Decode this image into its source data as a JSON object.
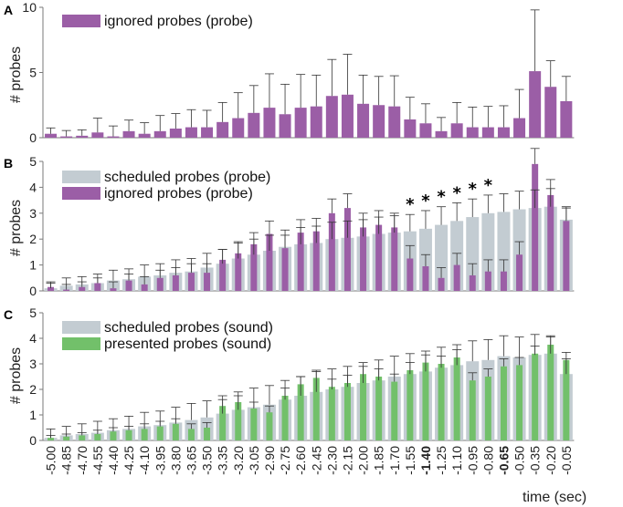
{
  "colors": {
    "ignored": "#9b5ea6",
    "scheduled": "#c3ccd2",
    "presented": "#72c06a",
    "axis": "#7a7a7a",
    "error": "#333333"
  },
  "x_axis_label": "time (sec)",
  "chart_data": [
    {
      "type": "bar",
      "panel": "A",
      "ylabel": "# probes",
      "ylim": [
        0,
        10
      ],
      "yticks": [
        0,
        5,
        10
      ],
      "legend": [
        "ignored probes (probe)"
      ],
      "series": [
        {
          "name": "ignored probes (probe)",
          "values": [
            0.3,
            0.1,
            0.15,
            0.4,
            0.1,
            0.5,
            0.3,
            0.5,
            0.7,
            0.8,
            0.8,
            1.2,
            1.5,
            1.9,
            2.3,
            1.8,
            2.3,
            2.4,
            3.2,
            3.3,
            2.6,
            2.5,
            2.4,
            1.4,
            1.1,
            0.5,
            1.1,
            0.8,
            0.8,
            0.8,
            1.5,
            5.1,
            3.9,
            2.8
          ],
          "errors": [
            0.45,
            0.45,
            0.45,
            1.1,
            0.8,
            0.85,
            0.85,
            1.2,
            1.15,
            1.35,
            1.3,
            1.5,
            1.95,
            2.1,
            2.6,
            2.3,
            2.55,
            2.4,
            2.8,
            3.1,
            2.2,
            2.2,
            2.35,
            1.7,
            1.5,
            1.05,
            1.6,
            1.55,
            1.6,
            1.65,
            2.2,
            4.7,
            2.0,
            1.9
          ]
        }
      ]
    },
    {
      "type": "bar",
      "panel": "B",
      "ylabel": "# probes",
      "ylim": [
        0,
        5
      ],
      "yticks": [
        0,
        1,
        2,
        3,
        4,
        5
      ],
      "legend": [
        "scheduled probes (probe)",
        "ignored probes (probe)"
      ],
      "annotations": [
        "*",
        "*",
        "*",
        "*",
        "*",
        "*"
      ],
      "annotation_indices": [
        23,
        24,
        25,
        26,
        27,
        28
      ],
      "series": [
        {
          "name": "scheduled probes (probe)",
          "values": [
            0.1,
            0.2,
            0.25,
            0.3,
            0.4,
            0.45,
            0.55,
            0.6,
            0.7,
            0.75,
            0.9,
            1.05,
            1.25,
            1.4,
            1.55,
            1.7,
            1.8,
            1.85,
            2.0,
            2.05,
            2.1,
            2.2,
            2.25,
            2.3,
            2.4,
            2.55,
            2.7,
            2.85,
            3.0,
            3.05,
            3.15,
            3.2,
            3.25,
            2.75
          ],
          "errors": [
            0.25,
            0.3,
            0.3,
            0.35,
            0.4,
            0.4,
            0.45,
            0.45,
            0.5,
            0.5,
            0.55,
            0.55,
            0.6,
            0.6,
            0.6,
            0.65,
            0.65,
            0.65,
            0.65,
            0.65,
            0.65,
            0.65,
            0.65,
            0.65,
            0.7,
            0.7,
            0.7,
            0.7,
            0.7,
            0.7,
            0.7,
            0.7,
            0.7,
            0.5
          ]
        },
        {
          "name": "ignored probes (probe)",
          "values": [
            0.15,
            0.05,
            0.15,
            0.3,
            0.1,
            0.4,
            0.25,
            0.5,
            0.6,
            0.7,
            0.7,
            1.2,
            1.45,
            1.8,
            2.2,
            1.65,
            2.25,
            2.3,
            3.0,
            3.2,
            2.45,
            2.55,
            2.45,
            1.25,
            0.95,
            0.5,
            1.0,
            0.6,
            0.75,
            0.75,
            1.4,
            4.9,
            3.7,
            2.7
          ],
          "errors": [
            0.15,
            0.2,
            0.2,
            0.2,
            0.25,
            0.25,
            0.3,
            0.3,
            0.3,
            0.35,
            0.35,
            0.4,
            0.45,
            0.45,
            0.5,
            0.5,
            0.5,
            0.5,
            0.55,
            0.55,
            0.55,
            0.55,
            0.55,
            0.5,
            0.45,
            0.4,
            0.45,
            0.45,
            0.45,
            0.45,
            0.5,
            0.6,
            0.6,
            0.5
          ]
        }
      ]
    },
    {
      "type": "bar",
      "panel": "C",
      "ylabel": "# probes",
      "ylim": [
        0,
        5
      ],
      "yticks": [
        0,
        1,
        2,
        3,
        4,
        5
      ],
      "legend": [
        "scheduled probes (sound)",
        "presented probes (sound)"
      ],
      "categories": [
        "-5.00",
        "-4.85",
        "-4.70",
        "-4.55",
        "-4.40",
        "-4.25",
        "-4.10",
        "-3.95",
        "-3.80",
        "-3.65",
        "-3.50",
        "-3.35",
        "-3.20",
        "-3.05",
        "-2.90",
        "-2.75",
        "-2.60",
        "-2.45",
        "-2.30",
        "-2.15",
        "-2.00",
        "-1.85",
        "-1.70",
        "-1.55",
        "-1.40",
        "-1.25",
        "-1.10",
        "-0.95",
        "-0.80",
        "-0.65",
        "-0.50",
        "-0.35",
        "-0.20",
        "-0.05"
      ],
      "bold_categories": [
        "-1.40",
        "-0.65"
      ],
      "series": [
        {
          "name": "scheduled probes (sound)",
          "values": [
            0.1,
            0.2,
            0.25,
            0.3,
            0.4,
            0.45,
            0.55,
            0.6,
            0.7,
            0.8,
            0.9,
            1.05,
            1.2,
            1.3,
            1.4,
            1.6,
            1.75,
            1.9,
            2.0,
            2.1,
            2.25,
            2.35,
            2.5,
            2.6,
            2.7,
            2.85,
            2.95,
            3.1,
            3.15,
            3.3,
            3.25,
            3.35,
            3.4,
            2.6
          ],
          "errors": [
            0.35,
            0.35,
            0.4,
            0.45,
            0.45,
            0.5,
            0.55,
            0.55,
            0.6,
            0.65,
            0.65,
            0.7,
            0.7,
            0.75,
            0.75,
            0.75,
            0.75,
            0.8,
            0.8,
            0.8,
            0.8,
            0.8,
            0.8,
            0.8,
            0.8,
            0.8,
            0.8,
            0.8,
            0.8,
            0.8,
            0.8,
            0.8,
            0.7,
            0.6
          ]
        },
        {
          "name": "presented probes (sound)",
          "values": [
            0.1,
            0.15,
            0.2,
            0.25,
            0.35,
            0.4,
            0.45,
            0.55,
            0.65,
            0.45,
            0.5,
            1.35,
            1.5,
            1.25,
            1.1,
            1.75,
            2.2,
            2.45,
            2.1,
            2.25,
            2.6,
            2.5,
            2.3,
            2.75,
            3.05,
            3.0,
            3.25,
            2.35,
            2.5,
            2.9,
            2.95,
            3.4,
            3.75,
            3.15
          ],
          "errors": [
            0.1,
            0.1,
            0.1,
            0.15,
            0.15,
            0.15,
            0.2,
            0.2,
            0.2,
            0.2,
            0.2,
            0.25,
            0.25,
            0.25,
            0.25,
            0.3,
            0.3,
            0.3,
            0.3,
            0.3,
            0.3,
            0.3,
            0.3,
            0.3,
            0.3,
            0.3,
            0.3,
            0.3,
            0.3,
            0.3,
            0.3,
            0.3,
            0.3,
            0.3
          ]
        }
      ]
    }
  ]
}
